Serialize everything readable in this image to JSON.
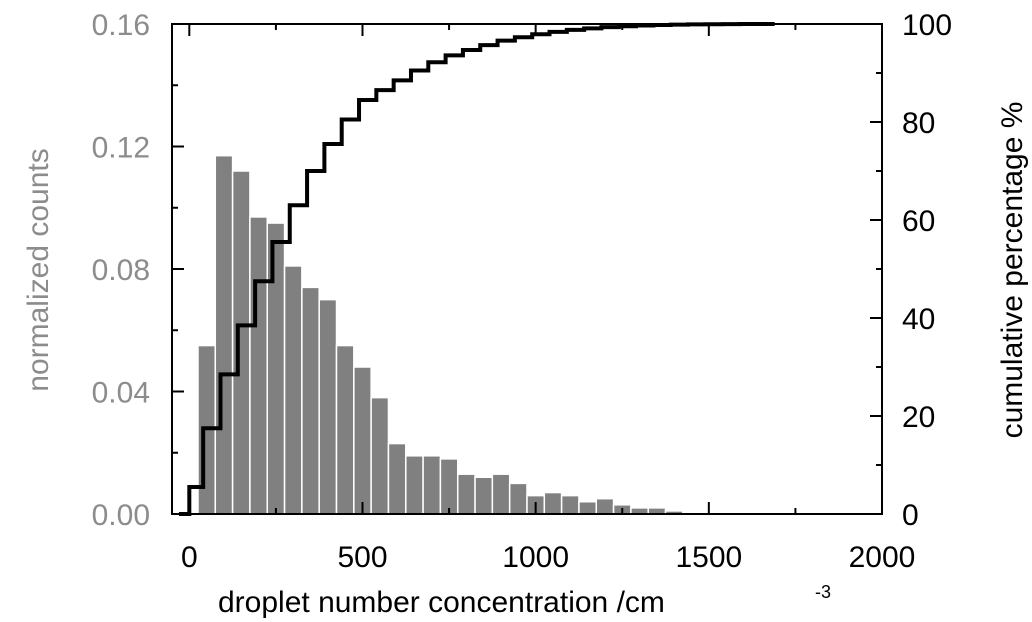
{
  "chart_data": {
    "type": "bar",
    "xlabel": "droplet number concentration /cm",
    "xlabel_superscript": "-3",
    "ylabel_left": "normalized counts",
    "ylabel_right": "cumulative percentage %",
    "xlim": [
      -50,
      2000
    ],
    "ylim_left": [
      0,
      0.16
    ],
    "ylim_right": [
      0,
      100
    ],
    "x_ticks": [
      0,
      500,
      1000,
      1500,
      2000
    ],
    "x_tick_labels": [
      "0",
      "500",
      "1000",
      "1500",
      "2000"
    ],
    "y_left_ticks": [
      0.0,
      0.04,
      0.08,
      0.12,
      0.16
    ],
    "y_left_tick_labels": [
      "0.00",
      "0.04",
      "0.08",
      "0.12",
      "0.16"
    ],
    "y_right_ticks": [
      0,
      20,
      40,
      60,
      80,
      100
    ],
    "y_right_tick_labels": [
      "0",
      "20",
      "40",
      "60",
      "80",
      "100"
    ],
    "colors": {
      "bars": "#808080",
      "bar_edge": "#ffffff",
      "cumulative_line": "#000000",
      "left_axis_text": "#8c8c8c",
      "right_axis_text": "#000000"
    },
    "histogram": {
      "bin_edges": [
        25,
        75,
        125,
        175,
        225,
        275,
        325,
        375,
        425,
        475,
        525,
        575,
        625,
        675,
        725,
        775,
        825,
        875,
        925,
        975,
        1025,
        1075,
        1125,
        1175,
        1225,
        1275,
        1325,
        1375,
        1425,
        1475,
        1525,
        1575,
        1625,
        1675
      ],
      "values": [
        0.055,
        0.117,
        0.112,
        0.097,
        0.095,
        0.081,
        0.074,
        0.07,
        0.055,
        0.048,
        0.038,
        0.023,
        0.019,
        0.019,
        0.018,
        0.013,
        0.012,
        0.013,
        0.01,
        0.006,
        0.007,
        0.006,
        0.004,
        0.005,
        0.003,
        0.002,
        0.002,
        0.001,
        0.0005,
        0.0003,
        0.0004,
        0.0002,
        0.0001
      ]
    },
    "cumulative": {
      "x": [
        -30,
        0,
        40,
        90,
        140,
        190,
        240,
        290,
        340,
        390,
        440,
        490,
        540,
        590,
        640,
        690,
        740,
        790,
        840,
        890,
        940,
        990,
        1040,
        1090,
        1140,
        1190,
        1240,
        1290,
        1340,
        1390,
        1440,
        1490,
        1540,
        1590,
        1640,
        1690
      ],
      "y": [
        0,
        5.5,
        17.5,
        28.5,
        38.5,
        47.5,
        55.5,
        63,
        70,
        75.5,
        80.5,
        84.5,
        86.5,
        88.5,
        90.5,
        92.2,
        93.6,
        94.7,
        95.7,
        96.6,
        97.3,
        97.9,
        98.4,
        98.8,
        99.1,
        99.35,
        99.55,
        99.7,
        99.8,
        99.87,
        99.92,
        99.95,
        99.97,
        99.99,
        100,
        100
      ]
    }
  }
}
